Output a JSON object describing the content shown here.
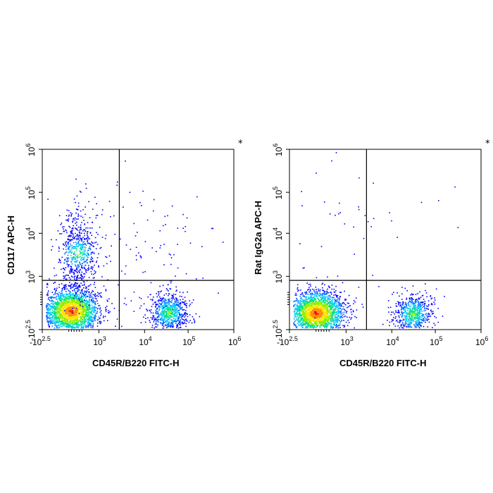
{
  "chart_data": [
    {
      "type": "scatter",
      "subtype": "flow-cytometry density dot plot",
      "xlabel": "CD45R/B220 FITC-H",
      "ylabel": "CD117 APC-H",
      "x_scale": "biexponential",
      "y_scale": "biexponential",
      "x_ticks": [
        {
          "value": -316,
          "base": "-10",
          "exp": "2.5"
        },
        {
          "value": 1000,
          "base": "10",
          "exp": "3"
        },
        {
          "value": 10000,
          "base": "10",
          "exp": "4"
        },
        {
          "value": 100000,
          "base": "10",
          "exp": "5"
        },
        {
          "value": 1000000,
          "base": "10",
          "exp": "6"
        }
      ],
      "y_ticks": [
        {
          "value": -316,
          "base": "-10",
          "exp": "2.5"
        },
        {
          "value": 1000,
          "base": "10",
          "exp": "3"
        },
        {
          "value": 10000,
          "base": "10",
          "exp": "4"
        },
        {
          "value": 100000,
          "base": "10",
          "exp": "5"
        },
        {
          "value": 1000000,
          "base": "10",
          "exp": "6"
        }
      ],
      "gate_x": 2800,
      "gate_y": 900,
      "corner_mark": "*",
      "populations": [
        {
          "name": "B220- CD117- main",
          "center_x": 350,
          "center_y": 150,
          "n": 2200,
          "density": "high"
        },
        {
          "name": "B220- CD117+ tail",
          "center_x": 500,
          "center_y": 3500,
          "n": 650,
          "density": "medium"
        },
        {
          "name": "B220+ CD117-",
          "center_x": 35000,
          "center_y": 120,
          "n": 700,
          "density": "medium"
        },
        {
          "name": "scattered events",
          "center_x": 10000,
          "center_y": 2000,
          "n": 150,
          "density": "low"
        }
      ]
    },
    {
      "type": "scatter",
      "subtype": "flow-cytometry density dot plot",
      "xlabel": "CD45R/B220 FITC-H",
      "ylabel": "Rat IgG2a APC-H",
      "x_scale": "biexponential",
      "y_scale": "biexponential",
      "x_ticks": [
        {
          "value": -316,
          "base": "-10",
          "exp": "2.5"
        },
        {
          "value": 1000,
          "base": "10",
          "exp": "3"
        },
        {
          "value": 10000,
          "base": "10",
          "exp": "4"
        },
        {
          "value": 100000,
          "base": "10",
          "exp": "5"
        },
        {
          "value": 1000000,
          "base": "10",
          "exp": "6"
        }
      ],
      "y_ticks": [
        {
          "value": -316,
          "base": "-10",
          "exp": "2.5"
        },
        {
          "value": 1000,
          "base": "10",
          "exp": "3"
        },
        {
          "value": 10000,
          "base": "10",
          "exp": "4"
        },
        {
          "value": 100000,
          "base": "10",
          "exp": "5"
        },
        {
          "value": 1000000,
          "base": "10",
          "exp": "6"
        }
      ],
      "gate_x": 2800,
      "gate_y": 900,
      "corner_mark": "*",
      "populations": [
        {
          "name": "B220- isotype main",
          "center_x": 300,
          "center_y": 100,
          "n": 2300,
          "density": "high"
        },
        {
          "name": "B220+ isotype",
          "center_x": 30000,
          "center_y": 80,
          "n": 650,
          "density": "medium"
        },
        {
          "name": "sparse upper events",
          "center_x": 2000,
          "center_y": 20000,
          "n": 45,
          "density": "low"
        }
      ]
    }
  ]
}
